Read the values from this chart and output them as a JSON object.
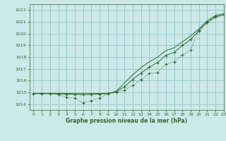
{
  "bg_color": "#cce8e8",
  "grid_color": "#99cccc",
  "line_color": "#2d6a2d",
  "title": "Graphe pression niveau de la mer (hPa)",
  "xlim": [
    -0.5,
    23
  ],
  "ylim": [
    1013.5,
    1022.5
  ],
  "yticks": [
    1014,
    1015,
    1016,
    1017,
    1018,
    1019,
    1020,
    1021,
    1022
  ],
  "xticks": [
    0,
    1,
    2,
    3,
    4,
    5,
    6,
    7,
    8,
    9,
    10,
    11,
    12,
    13,
    14,
    15,
    16,
    17,
    18,
    19,
    20,
    21,
    22,
    23
  ],
  "line_dotted_x": [
    0,
    1,
    2,
    3,
    4,
    5,
    6,
    7,
    8,
    9,
    10,
    11,
    12,
    13,
    14,
    15,
    16,
    17,
    18,
    19,
    20,
    21,
    22,
    23
  ],
  "line_dotted_y": [
    1014.9,
    1014.9,
    1014.9,
    1014.8,
    1014.6,
    1014.5,
    1014.1,
    1014.3,
    1014.5,
    1014.9,
    1015.0,
    1015.2,
    1015.6,
    1016.1,
    1016.6,
    1016.7,
    1017.4,
    1017.6,
    1018.2,
    1018.6,
    1020.3,
    1021.0,
    1021.5,
    1021.6
  ],
  "line_mid_x": [
    0,
    1,
    2,
    3,
    4,
    5,
    6,
    7,
    8,
    9,
    10,
    11,
    12,
    13,
    14,
    15,
    16,
    17,
    18,
    19,
    20,
    21,
    22,
    23
  ],
  "line_mid_y": [
    1014.9,
    1014.9,
    1014.9,
    1014.88,
    1014.85,
    1014.82,
    1014.8,
    1014.82,
    1014.85,
    1014.9,
    1015.05,
    1015.5,
    1016.1,
    1016.65,
    1017.15,
    1017.55,
    1018.15,
    1018.4,
    1019.0,
    1019.5,
    1020.25,
    1020.95,
    1021.4,
    1021.6
  ],
  "line_upper_x": [
    0,
    1,
    2,
    3,
    4,
    5,
    6,
    7,
    8,
    9,
    10,
    11,
    12,
    13,
    14,
    15,
    16,
    17,
    18,
    19,
    20,
    21,
    22,
    23
  ],
  "line_upper_y": [
    1014.9,
    1014.9,
    1014.9,
    1014.9,
    1014.9,
    1014.9,
    1014.9,
    1014.9,
    1014.9,
    1014.9,
    1015.1,
    1015.8,
    1016.5,
    1017.1,
    1017.6,
    1018.0,
    1018.55,
    1018.8,
    1019.3,
    1019.8,
    1020.4,
    1021.1,
    1021.55,
    1021.7
  ]
}
